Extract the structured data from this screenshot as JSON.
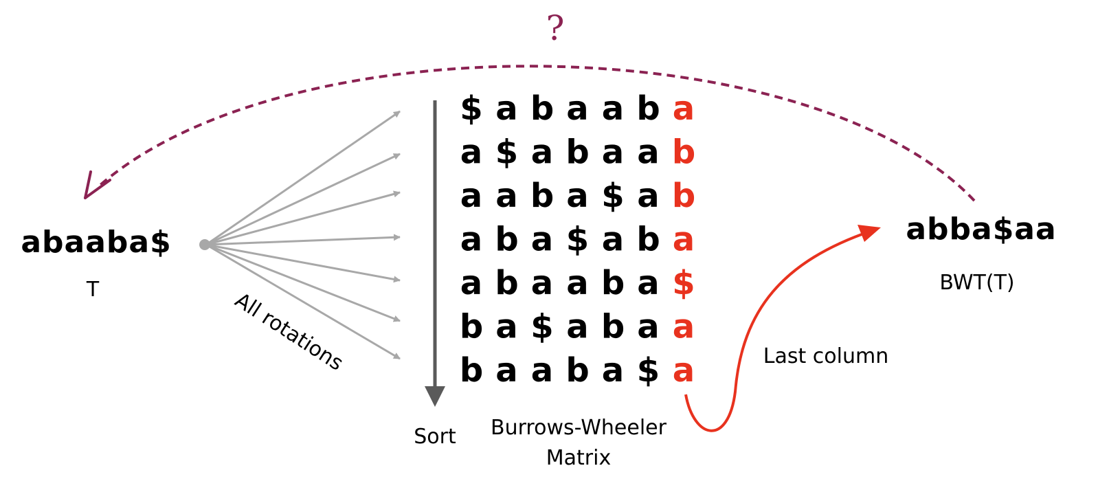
{
  "question_mark": "?",
  "input": {
    "text": "abaaba$",
    "label": "T"
  },
  "rotations_label": "All rotations",
  "sort_label": "Sort",
  "matrix_label_line1": "Burrows-Wheeler",
  "matrix_label_line2": "Matrix",
  "last_column_label": "Last column",
  "output": {
    "text": "abba$aa",
    "label": "BWT(T)"
  },
  "matrix_rows": [
    [
      "$",
      "a",
      "b",
      "a",
      "a",
      "b",
      "a"
    ],
    [
      "a",
      "$",
      "a",
      "b",
      "a",
      "a",
      "b"
    ],
    [
      "a",
      "a",
      "b",
      "a",
      "$",
      "a",
      "b"
    ],
    [
      "a",
      "b",
      "a",
      "$",
      "a",
      "b",
      "a"
    ],
    [
      "a",
      "b",
      "a",
      "a",
      "b",
      "a",
      "$"
    ],
    [
      "b",
      "a",
      "$",
      "a",
      "b",
      "a",
      "a"
    ],
    [
      "b",
      "a",
      "a",
      "b",
      "a",
      "$",
      "a"
    ]
  ],
  "colors": {
    "last_column": "#e8321e",
    "question_arc": "#8b2252",
    "rotation_arrows": "#a8a8a8",
    "sort_arrow": "#5a5a5a",
    "text": "#000000"
  }
}
